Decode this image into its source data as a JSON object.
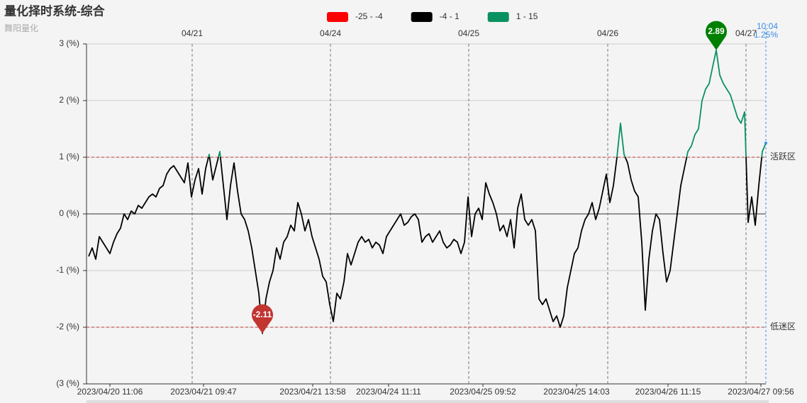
{
  "chart_data": {
    "type": "line",
    "title": "量化择时系统-综合",
    "subtitle": "舞阳量化",
    "pieces": [
      {
        "min": -25,
        "max": -4,
        "label": "-25 - -4",
        "color": "#ff0000"
      },
      {
        "min": -4,
        "max": 1,
        "label": "-4 - 1",
        "color": "#000000"
      },
      {
        "min": 1,
        "max": 15,
        "label": "1 - 15",
        "color": "#0a9160"
      }
    ],
    "values": [
      -0.75,
      -0.6,
      -0.8,
      -0.4,
      -0.5,
      -0.6,
      -0.7,
      -0.5,
      -0.35,
      -0.25,
      0,
      -0.1,
      0.05,
      0,
      0.15,
      0.1,
      0.2,
      0.3,
      0.35,
      0.3,
      0.45,
      0.5,
      0.7,
      0.8,
      0.85,
      0.75,
      0.65,
      0.55,
      0.9,
      0.3,
      0.6,
      0.8,
      0.35,
      0.8,
      1.05,
      0.6,
      0.85,
      1.1,
      0.5,
      -0.1,
      0.5,
      0.9,
      0.4,
      0,
      -0.1,
      -0.3,
      -0.6,
      -1,
      -1.4,
      -2.11,
      -1.5,
      -1.2,
      -1,
      -0.6,
      -0.8,
      -0.5,
      -0.4,
      -0.2,
      -0.3,
      0.2,
      0,
      -0.3,
      -0.1,
      -0.4,
      -0.6,
      -0.8,
      -1.1,
      -1.2,
      -1.6,
      -1.9,
      -1.4,
      -1.5,
      -1.2,
      -0.7,
      -0.9,
      -0.7,
      -0.5,
      -0.4,
      -0.5,
      -0.45,
      -0.6,
      -0.5,
      -0.55,
      -0.7,
      -0.4,
      -0.3,
      -0.2,
      -0.1,
      0,
      -0.2,
      -0.15,
      -0.05,
      0,
      -0.1,
      -0.5,
      -0.4,
      -0.35,
      -0.5,
      -0.4,
      -0.3,
      -0.5,
      -0.6,
      -0.55,
      -0.45,
      -0.5,
      -0.7,
      -0.5,
      0.3,
      -0.4,
      0,
      0.1,
      -0.1,
      0.55,
      0.35,
      0.2,
      0,
      -0.3,
      -0.2,
      -0.4,
      -0.1,
      -0.6,
      0.1,
      0.35,
      -0.1,
      -0.2,
      -0.1,
      -0.3,
      -1.5,
      -1.6,
      -1.5,
      -1.7,
      -1.9,
      -1.8,
      -2,
      -1.8,
      -1.3,
      -1,
      -0.7,
      -0.6,
      -0.3,
      -0.1,
      0,
      0.2,
      -0.1,
      0.1,
      0.4,
      0.7,
      0.2,
      0.5,
      1,
      1.6,
      1.05,
      0.9,
      0.6,
      0.4,
      0.3,
      -0.5,
      -1.7,
      -0.8,
      -0.3,
      0,
      -0.1,
      -0.7,
      -1.2,
      -1,
      -0.5,
      0,
      0.5,
      0.8,
      1.1,
      1.2,
      1.4,
      1.5,
      2,
      2.2,
      2.3,
      2.6,
      2.89,
      2.45,
      2.3,
      2.2,
      2.1,
      1.9,
      1.7,
      1.6,
      1.8,
      -0.15,
      0.3,
      -0.2,
      0.5,
      1.1,
      1.25
    ],
    "xlim": [
      0,
      191
    ],
    "xticks": [
      {
        "value": 6,
        "label": "2023/04/20 11:06"
      },
      {
        "value": 32.4,
        "label": "2023/04/21 09:47"
      },
      {
        "value": 63.2,
        "label": "2023/04/21 13:58"
      },
      {
        "value": 84.6,
        "label": "2023/04/24 11:11"
      },
      {
        "value": 111.2,
        "label": "2023/04/25 09:52"
      },
      {
        "value": 137.6,
        "label": "2023/04/25 14:03"
      },
      {
        "value": 163.4,
        "label": "2023/04/26 11:15"
      },
      {
        "value": 189.6,
        "label": "2023/04/27 09:56"
      }
    ],
    "day_ticks": [
      {
        "value": 29.2,
        "label": "04/21"
      },
      {
        "value": 68.2,
        "label": "04/24"
      },
      {
        "value": 107.2,
        "label": "04/25"
      },
      {
        "value": 146.4,
        "label": "04/26"
      },
      {
        "value": 185.4,
        "label": "04/27"
      }
    ],
    "ylim": [
      -3,
      3
    ],
    "yticks": [
      {
        "value": 3,
        "label": "3 (%)"
      },
      {
        "value": 2,
        "label": "2 (%)"
      },
      {
        "value": 1,
        "label": "1 (%)"
      },
      {
        "value": 0,
        "label": "0 (%)"
      },
      {
        "value": -1,
        "label": "-1 (%)"
      },
      {
        "value": -2,
        "label": "-2 (%)"
      },
      {
        "value": -3,
        "label": "(3 (%)"
      }
    ],
    "grid": true,
    "mark_lines": [
      {
        "value": 1,
        "label": "活跃区"
      },
      {
        "value": -2,
        "label": "低迷区"
      }
    ],
    "mark_points": [
      {
        "value": 2.89,
        "color": "#008000"
      },
      {
        "value": -2.11,
        "color": "#c23531"
      }
    ],
    "pointer": {
      "time": "10:04",
      "value": 1.25,
      "value_label": "1.25%"
    }
  }
}
